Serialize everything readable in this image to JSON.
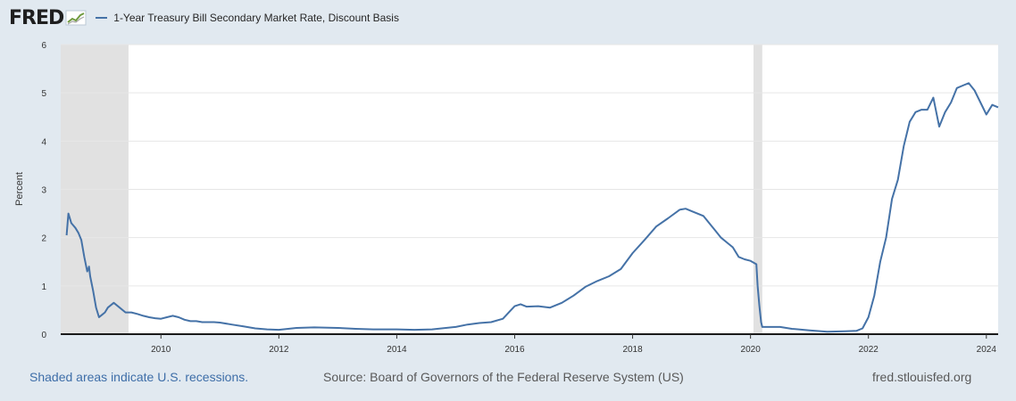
{
  "header": {
    "logo_text": "FRED",
    "legend_label": "1-Year Treasury Bill Secondary Market Rate, Discount Basis",
    "legend_color": "#4572a7"
  },
  "footer": {
    "recession_note": "Shaded areas indicate U.S. recessions.",
    "source": "Source: Board of Governors of the Federal Reserve System (US)",
    "site": "fred.stlouisfed.org"
  },
  "chart_data": {
    "type": "line",
    "title": "1-Year Treasury Bill Secondary Market Rate, Discount Basis",
    "xlabel": "",
    "ylabel": "Percent",
    "xlim": [
      2008.3,
      2024.2
    ],
    "ylim": [
      0,
      6
    ],
    "x_ticks": [
      2010,
      2012,
      2014,
      2016,
      2018,
      2020,
      2022,
      2024
    ],
    "y_ticks": [
      0,
      1,
      2,
      3,
      4,
      5,
      6
    ],
    "grid": true,
    "line_color": "#4572a7",
    "recessions": [
      {
        "start": 2008.3,
        "end": 2009.45
      },
      {
        "start": 2020.05,
        "end": 2020.2
      }
    ],
    "series": [
      {
        "name": "1-Year Treasury Bill Secondary Market Rate, Discount Basis",
        "x": [
          2008.4,
          2008.43,
          2008.48,
          2008.55,
          2008.6,
          2008.65,
          2008.7,
          2008.75,
          2008.78,
          2008.8,
          2008.85,
          2008.9,
          2008.95,
          2009.0,
          2009.05,
          2009.1,
          2009.2,
          2009.3,
          2009.4,
          2009.5,
          2009.6,
          2009.7,
          2009.8,
          2009.9,
          2010.0,
          2010.1,
          2010.2,
          2010.3,
          2010.4,
          2010.5,
          2010.6,
          2010.7,
          2010.8,
          2010.9,
          2011.0,
          2011.2,
          2011.4,
          2011.6,
          2011.8,
          2012.0,
          2012.3,
          2012.6,
          2013.0,
          2013.3,
          2013.6,
          2014.0,
          2014.3,
          2014.6,
          2015.0,
          2015.2,
          2015.4,
          2015.6,
          2015.8,
          2015.9,
          2016.0,
          2016.1,
          2016.2,
          2016.4,
          2016.6,
          2016.8,
          2017.0,
          2017.2,
          2017.4,
          2017.6,
          2017.8,
          2018.0,
          2018.2,
          2018.4,
          2018.6,
          2018.8,
          2018.9,
          2019.0,
          2019.2,
          2019.4,
          2019.5,
          2019.6,
          2019.7,
          2019.8,
          2019.9,
          2020.0,
          2020.1,
          2020.12,
          2020.15,
          2020.18,
          2020.2,
          2020.3,
          2020.5,
          2020.7,
          2021.0,
          2021.3,
          2021.6,
          2021.8,
          2021.9,
          2022.0,
          2022.1,
          2022.2,
          2022.3,
          2022.4,
          2022.5,
          2022.6,
          2022.7,
          2022.8,
          2022.9,
          2023.0,
          2023.1,
          2023.2,
          2023.3,
          2023.4,
          2023.5,
          2023.6,
          2023.7,
          2023.8,
          2023.9,
          2024.0,
          2024.1,
          2024.2
        ],
        "values": [
          2.05,
          2.5,
          2.3,
          2.2,
          2.1,
          1.95,
          1.6,
          1.3,
          1.4,
          1.2,
          0.9,
          0.55,
          0.35,
          0.4,
          0.45,
          0.55,
          0.65,
          0.55,
          0.45,
          0.45,
          0.42,
          0.38,
          0.35,
          0.33,
          0.32,
          0.35,
          0.38,
          0.35,
          0.3,
          0.27,
          0.27,
          0.25,
          0.25,
          0.25,
          0.24,
          0.2,
          0.16,
          0.12,
          0.1,
          0.09,
          0.13,
          0.14,
          0.13,
          0.11,
          0.1,
          0.1,
          0.09,
          0.1,
          0.15,
          0.2,
          0.23,
          0.25,
          0.32,
          0.45,
          0.58,
          0.62,
          0.57,
          0.58,
          0.55,
          0.65,
          0.8,
          0.98,
          1.1,
          1.2,
          1.35,
          1.68,
          1.95,
          2.23,
          2.4,
          2.58,
          2.6,
          2.55,
          2.45,
          2.15,
          2.0,
          1.9,
          1.8,
          1.6,
          1.55,
          1.52,
          1.45,
          1.0,
          0.6,
          0.25,
          0.15,
          0.15,
          0.15,
          0.11,
          0.08,
          0.05,
          0.06,
          0.07,
          0.12,
          0.35,
          0.8,
          1.5,
          2.0,
          2.8,
          3.2,
          3.9,
          4.4,
          4.6,
          4.65,
          4.65,
          4.9,
          4.3,
          4.6,
          4.8,
          5.1,
          5.15,
          5.2,
          5.05,
          4.8,
          4.55,
          4.75,
          4.7
        ]
      }
    ]
  }
}
